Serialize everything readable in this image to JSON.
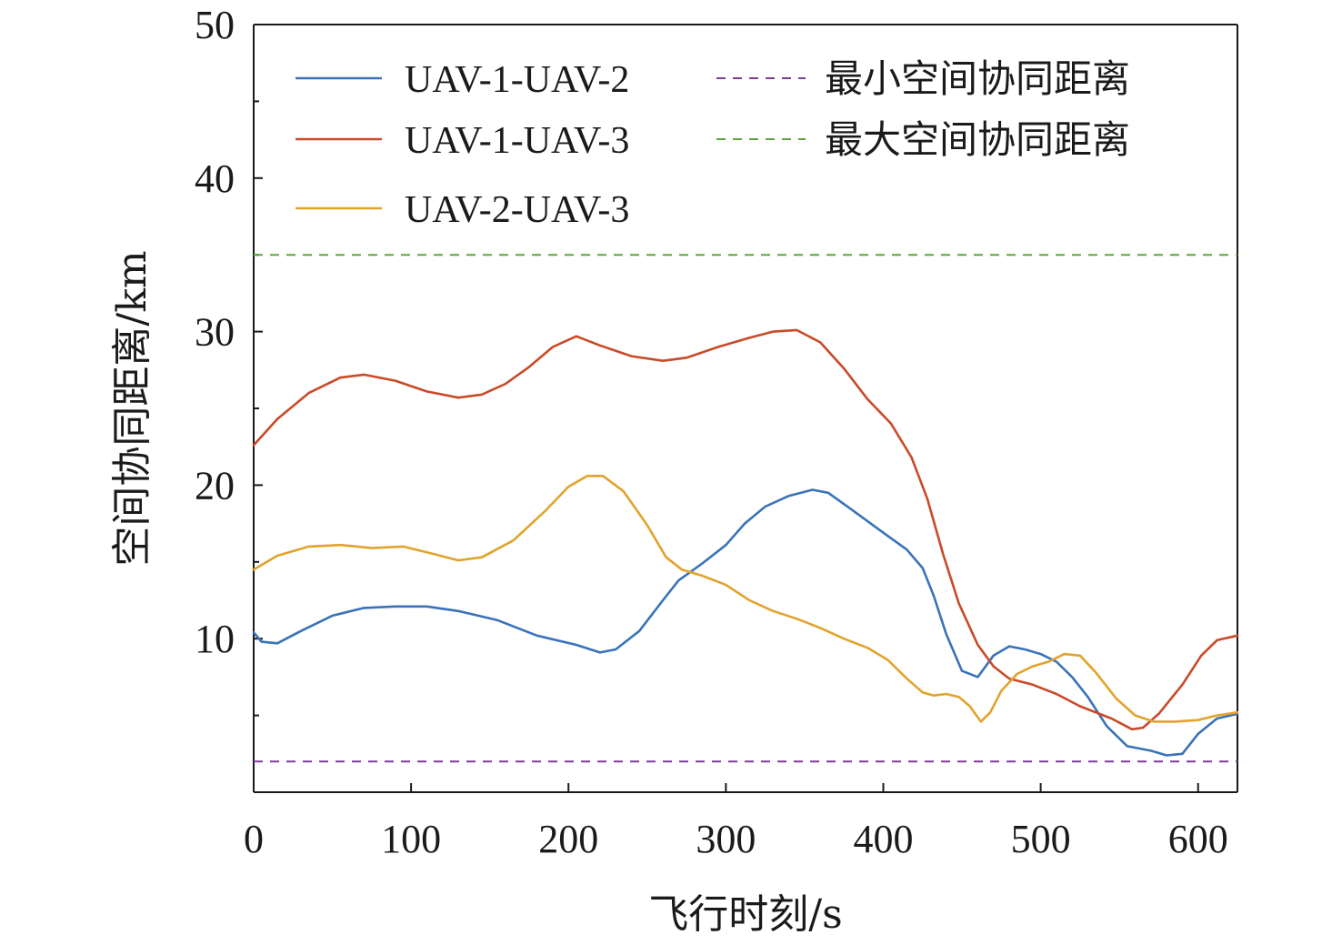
{
  "chart_data": {
    "type": "line",
    "title": "",
    "xlabel": "飞行时刻/s",
    "ylabel": "空间协同距离/km",
    "xlim": [
      0,
      625
    ],
    "ylim": [
      0,
      50
    ],
    "x_ticks": [
      0,
      100,
      200,
      300,
      400,
      500,
      600
    ],
    "y_ticks": [
      10,
      20,
      30,
      40,
      50
    ],
    "grid": false,
    "legend_position": "top",
    "series": [
      {
        "name": "UAV-1-UAV-2",
        "color": "#3a72b9",
        "points": [
          [
            0,
            10.4
          ],
          [
            5,
            9.8
          ],
          [
            15,
            9.7
          ],
          [
            30,
            10.5
          ],
          [
            50,
            11.5
          ],
          [
            70,
            12.0
          ],
          [
            90,
            12.1
          ],
          [
            110,
            12.1
          ],
          [
            130,
            11.8
          ],
          [
            155,
            11.2
          ],
          [
            180,
            10.2
          ],
          [
            205,
            9.6
          ],
          [
            220,
            9.1
          ],
          [
            230,
            9.3
          ],
          [
            245,
            10.5
          ],
          [
            260,
            12.5
          ],
          [
            270,
            13.8
          ],
          [
            285,
            14.9
          ],
          [
            300,
            16.1
          ],
          [
            312,
            17.5
          ],
          [
            325,
            18.6
          ],
          [
            340,
            19.3
          ],
          [
            355,
            19.7
          ],
          [
            365,
            19.5
          ],
          [
            380,
            18.4
          ],
          [
            400,
            16.9
          ],
          [
            415,
            15.8
          ],
          [
            425,
            14.6
          ],
          [
            432,
            12.8
          ],
          [
            440,
            10.3
          ],
          [
            450,
            7.9
          ],
          [
            460,
            7.5
          ],
          [
            470,
            8.9
          ],
          [
            480,
            9.5
          ],
          [
            490,
            9.3
          ],
          [
            500,
            9.0
          ],
          [
            510,
            8.5
          ],
          [
            520,
            7.5
          ],
          [
            530,
            6.2
          ],
          [
            542,
            4.3
          ],
          [
            555,
            3.0
          ],
          [
            570,
            2.7
          ],
          [
            580,
            2.4
          ],
          [
            590,
            2.5
          ],
          [
            600,
            3.8
          ],
          [
            612,
            4.8
          ],
          [
            625,
            5.1
          ]
        ]
      },
      {
        "name": "UAV-1-UAV-3",
        "color": "#c94a28",
        "points": [
          [
            0,
            22.6
          ],
          [
            15,
            24.3
          ],
          [
            35,
            26.0
          ],
          [
            55,
            27.0
          ],
          [
            70,
            27.2
          ],
          [
            90,
            26.8
          ],
          [
            110,
            26.1
          ],
          [
            130,
            25.7
          ],
          [
            145,
            25.9
          ],
          [
            160,
            26.6
          ],
          [
            175,
            27.7
          ],
          [
            190,
            29.0
          ],
          [
            205,
            29.7
          ],
          [
            220,
            29.1
          ],
          [
            240,
            28.4
          ],
          [
            260,
            28.1
          ],
          [
            275,
            28.3
          ],
          [
            295,
            29.0
          ],
          [
            315,
            29.6
          ],
          [
            330,
            30.0
          ],
          [
            345,
            30.1
          ],
          [
            360,
            29.3
          ],
          [
            375,
            27.6
          ],
          [
            390,
            25.6
          ],
          [
            405,
            24.0
          ],
          [
            418,
            21.8
          ],
          [
            428,
            19.1
          ],
          [
            438,
            15.5
          ],
          [
            448,
            12.3
          ],
          [
            460,
            9.6
          ],
          [
            470,
            8.2
          ],
          [
            480,
            7.4
          ],
          [
            495,
            7.0
          ],
          [
            510,
            6.4
          ],
          [
            525,
            5.6
          ],
          [
            545,
            4.8
          ],
          [
            558,
            4.1
          ],
          [
            565,
            4.2
          ],
          [
            575,
            5.1
          ],
          [
            590,
            7.0
          ],
          [
            602,
            8.9
          ],
          [
            612,
            9.9
          ],
          [
            625,
            10.2
          ]
        ]
      },
      {
        "name": "UAV-2-UAV-3",
        "color": "#e2a32c",
        "points": [
          [
            0,
            14.5
          ],
          [
            15,
            15.4
          ],
          [
            35,
            16.0
          ],
          [
            55,
            16.1
          ],
          [
            75,
            15.9
          ],
          [
            95,
            16.0
          ],
          [
            115,
            15.5
          ],
          [
            130,
            15.1
          ],
          [
            145,
            15.3
          ],
          [
            165,
            16.4
          ],
          [
            185,
            18.3
          ],
          [
            200,
            19.9
          ],
          [
            212,
            20.6
          ],
          [
            222,
            20.6
          ],
          [
            235,
            19.6
          ],
          [
            250,
            17.4
          ],
          [
            262,
            15.3
          ],
          [
            272,
            14.5
          ],
          [
            285,
            14.1
          ],
          [
            300,
            13.5
          ],
          [
            315,
            12.5
          ],
          [
            330,
            11.8
          ],
          [
            345,
            11.3
          ],
          [
            360,
            10.7
          ],
          [
            375,
            10.0
          ],
          [
            390,
            9.4
          ],
          [
            403,
            8.6
          ],
          [
            415,
            7.4
          ],
          [
            425,
            6.5
          ],
          [
            432,
            6.3
          ],
          [
            440,
            6.4
          ],
          [
            448,
            6.2
          ],
          [
            455,
            5.6
          ],
          [
            462,
            4.6
          ],
          [
            468,
            5.2
          ],
          [
            475,
            6.6
          ],
          [
            485,
            7.7
          ],
          [
            495,
            8.2
          ],
          [
            505,
            8.5
          ],
          [
            515,
            9.0
          ],
          [
            525,
            8.9
          ],
          [
            535,
            7.8
          ],
          [
            548,
            6.1
          ],
          [
            560,
            5.0
          ],
          [
            572,
            4.6
          ],
          [
            585,
            4.6
          ],
          [
            600,
            4.7
          ],
          [
            612,
            5.0
          ],
          [
            625,
            5.2
          ]
        ]
      }
    ],
    "reference_lines": [
      {
        "name": "最小空间协同距离",
        "value": 2.0,
        "color": "#7a3d99"
      },
      {
        "name": "最大空间协同距离",
        "value": 35.0,
        "color": "#5aa83c"
      }
    ]
  }
}
